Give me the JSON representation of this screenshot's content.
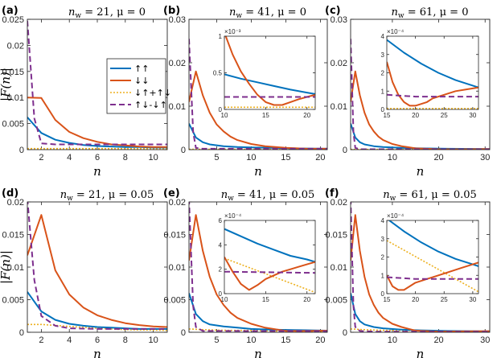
{
  "colors": {
    "uu": "#0072BD",
    "dd": "#D95319",
    "sum": "#EDB120",
    "diff": "#7E2F8E"
  },
  "ylabel": "|F(n)|",
  "legend": [
    "↑↑",
    "↓↓",
    "↓↑+↑↓",
    "↑↓-↓↑"
  ],
  "chart_data": [
    {
      "id": "a",
      "type": "line",
      "panel_label": "(a)",
      "title": "n_w = 21, μ = 0",
      "xlabel": "n",
      "xlim": [
        1,
        11
      ],
      "ylim": [
        0,
        0.025
      ],
      "xticks": [
        2,
        4,
        6,
        8,
        10
      ],
      "yticks": [
        0,
        0.005,
        0.01,
        0.015,
        0.02,
        0.025
      ],
      "ytick_labels": [
        "0",
        "0.005",
        "0.01",
        "0.015",
        "0.02",
        "0.025"
      ],
      "series": {
        "uu": {
          "x": [
            1,
            2,
            3,
            4,
            5,
            6,
            7,
            8,
            9,
            10,
            11
          ],
          "y": [
            0.0062,
            0.0032,
            0.0019,
            0.0013,
            0.0009,
            0.0007,
            0.0006,
            0.0005,
            0.0005,
            0.0004,
            0.0004
          ]
        },
        "dd": {
          "x": [
            1,
            2,
            3,
            4,
            5,
            6,
            7,
            8,
            9,
            10,
            11
          ],
          "y": [
            0.01,
            0.0099,
            0.0057,
            0.0034,
            0.0022,
            0.0015,
            0.001,
            0.0008,
            0.0006,
            0.0005,
            0.0005
          ]
        },
        "sum": {
          "x": [
            1,
            11
          ],
          "y": [
            0.0002,
            0.0002
          ]
        },
        "diff": {
          "x": [
            1,
            1.5,
            2,
            3,
            4,
            6,
            8,
            11
          ],
          "y": [
            0.0247,
            0.006,
            0.0012,
            0.001,
            0.001,
            0.001,
            0.001,
            0.001
          ]
        }
      }
    },
    {
      "id": "b",
      "type": "line",
      "panel_label": "(b)",
      "title": "n_w = 41, μ = 0",
      "xlabel": "n",
      "xlim": [
        1,
        21
      ],
      "ylim": [
        0,
        0.03
      ],
      "xticks": [
        5,
        10,
        15,
        20
      ],
      "yticks": [
        0,
        0.01,
        0.02,
        0.03
      ],
      "ytick_labels": [
        "0",
        "0.01",
        "0.02",
        "0.03"
      ],
      "series": {
        "uu": {
          "x": [
            1,
            2,
            3,
            4,
            6,
            8,
            10,
            13,
            16,
            21
          ],
          "y": [
            0.006,
            0.0028,
            0.0017,
            0.0012,
            0.0008,
            0.0006,
            0.0005,
            0.0004,
            0.0003,
            0.0002
          ]
        },
        "dd": {
          "x": [
            1,
            2,
            3,
            4,
            5,
            6,
            7,
            8,
            10,
            12,
            15,
            18,
            21
          ],
          "y": [
            0.011,
            0.018,
            0.0125,
            0.0085,
            0.0058,
            0.0042,
            0.003,
            0.0022,
            0.0013,
            0.0008,
            0.0004,
            0.0002,
            0.0002
          ]
        },
        "sum": {
          "x": [
            1,
            21
          ],
          "y": [
            0.0001,
            0.0001
          ]
        },
        "diff": {
          "x": [
            1,
            1.6,
            2,
            3,
            6,
            10,
            21
          ],
          "y": [
            0.0255,
            0.004,
            0.0004,
            0.0002,
            0.0002,
            0.0002,
            0.0002
          ]
        }
      },
      "inset": {
        "xlim": [
          10,
          21
        ],
        "ylim": [
          0,
          0.001
        ],
        "xticks": [
          10,
          15,
          20
        ],
        "yticks": [
          0,
          0.0005,
          0.001
        ],
        "ytick_labels": [
          "0",
          "0.5",
          "1"
        ],
        "exponent": "×10⁻³",
        "series": {
          "uu": {
            "x": [
              10,
              12,
              14,
              16,
              18,
              20,
              21
            ],
            "y": [
              0.00048,
              0.00042,
              0.00037,
              0.00032,
              0.00027,
              0.00023,
              0.00021
            ]
          },
          "dd": {
            "x": [
              10,
              11,
              12,
              13,
              14,
              15,
              16,
              17,
              18,
              19,
              20,
              21
            ],
            "y": [
              0.00105,
              0.00075,
              0.00052,
              0.00035,
              0.0002,
              0.0001,
              6e-05,
              6e-05,
              0.0001,
              0.00014,
              0.00017,
              0.0002
            ]
          },
          "sum": {
            "x": [
              10,
              21
            ],
            "y": [
              3e-05,
              3e-05
            ]
          },
          "diff": {
            "x": [
              10,
              21
            ],
            "y": [
              0.00017,
              0.00017
            ]
          }
        }
      }
    },
    {
      "id": "c",
      "type": "line",
      "panel_label": "(c)",
      "title": "n_w = 61, μ = 0",
      "xlabel": "n",
      "xlim": [
        1,
        31
      ],
      "ylim": [
        0,
        0.03
      ],
      "xticks": [
        10,
        20,
        30
      ],
      "yticks": [
        0,
        0.01,
        0.02,
        0.03
      ],
      "ytick_labels": [
        "0",
        "0.01",
        "0.02",
        "0.03"
      ],
      "series": {
        "uu": {
          "x": [
            1,
            2,
            3,
            4,
            6,
            8,
            12,
            16,
            22,
            31
          ],
          "y": [
            0.006,
            0.0028,
            0.0017,
            0.0012,
            0.0008,
            0.0006,
            0.0004,
            0.0003,
            0.0002,
            0.00013
          ]
        },
        "dd": {
          "x": [
            1,
            2,
            3,
            4,
            5,
            6,
            7,
            8,
            10,
            12,
            15,
            20,
            25,
            31
          ],
          "y": [
            0.011,
            0.018,
            0.0125,
            0.0085,
            0.0058,
            0.0042,
            0.003,
            0.0022,
            0.0013,
            0.0008,
            0.0003,
            0.0001,
            0.0001,
            0.00013
          ]
        },
        "sum": {
          "x": [
            1,
            31
          ],
          "y": [
            5e-05,
            5e-05
          ]
        },
        "diff": {
          "x": [
            1,
            1.6,
            2,
            3,
            6,
            31
          ],
          "y": [
            0.0255,
            0.004,
            0.0004,
            0.0001,
            0.0001,
            8e-05
          ]
        }
      },
      "inset": {
        "xlim": [
          15,
          31
        ],
        "ylim": [
          0,
          0.0004
        ],
        "xticks": [
          15,
          20,
          25,
          30
        ],
        "yticks": [
          0,
          0.0001,
          0.0002,
          0.0003,
          0.0004
        ],
        "ytick_labels": [
          "0",
          "1",
          "2",
          "3",
          "4"
        ],
        "exponent": "×10⁻⁴",
        "series": {
          "uu": {
            "x": [
              15,
              18,
              21,
              24,
              27,
              30,
              31
            ],
            "y": [
              0.00038,
              0.00031,
              0.00025,
              0.0002,
              0.00016,
              0.00013,
              0.00012
            ]
          },
          "dd": {
            "x": [
              15,
              16,
              17,
              18,
              19,
              20,
              21,
              22,
              23,
              25,
              27,
              29,
              31
            ],
            "y": [
              0.00026,
              0.00015,
              8e-05,
              4e-05,
              2e-05,
              2e-05,
              3e-05,
              4e-05,
              6e-05,
              8e-05,
              0.0001,
              0.00011,
              0.00012
            ]
          },
          "sum": {
            "x": [
              15,
              31
            ],
            "y": [
              5e-06,
              5e-06
            ]
          },
          "diff": {
            "x": [
              15,
              20,
              25,
              31
            ],
            "y": [
              8e-05,
              7e-05,
              7e-05,
              7e-05
            ]
          }
        }
      }
    },
    {
      "id": "d",
      "type": "line",
      "panel_label": "(d)",
      "title": "n_w = 21, μ = 0.05",
      "xlabel": "n",
      "xlim": [
        1,
        11
      ],
      "ylim": [
        0,
        0.02
      ],
      "xticks": [
        2,
        4,
        6,
        8,
        10
      ],
      "yticks": [
        0,
        0.005,
        0.01,
        0.015,
        0.02
      ],
      "ytick_labels": [
        "0",
        "0.005",
        "0.01",
        "0.015",
        "0.02"
      ],
      "series": {
        "uu": {
          "x": [
            1,
            2,
            3,
            4,
            5,
            6,
            7,
            8,
            9,
            10,
            11
          ],
          "y": [
            0.0062,
            0.0032,
            0.0019,
            0.0013,
            0.001,
            0.0008,
            0.0007,
            0.0006,
            0.0005,
            0.0005,
            0.0005
          ]
        },
        "dd": {
          "x": [
            1,
            2,
            3,
            4,
            5,
            6,
            7,
            8,
            9,
            10,
            11
          ],
          "y": [
            0.0118,
            0.018,
            0.0095,
            0.0058,
            0.0038,
            0.0026,
            0.0019,
            0.0014,
            0.0011,
            0.0009,
            0.0008
          ]
        },
        "sum": {
          "x": [
            1,
            2,
            4,
            6,
            8,
            11
          ],
          "y": [
            0.0012,
            0.0012,
            0.0009,
            0.0006,
            0.0004,
            0.0003
          ]
        },
        "diff": {
          "x": [
            1,
            1.5,
            2,
            3,
            4,
            6,
            8,
            11
          ],
          "y": [
            0.0205,
            0.008,
            0.0025,
            0.001,
            0.0006,
            0.0005,
            0.0005,
            0.0005
          ]
        }
      }
    },
    {
      "id": "e",
      "type": "line",
      "panel_label": "(e)",
      "title": "n_w = 41, μ = 0.05",
      "xlabel": "n",
      "xlim": [
        1,
        21
      ],
      "ylim": [
        0,
        0.02
      ],
      "xticks": [
        5,
        10,
        15,
        20
      ],
      "yticks": [
        0,
        0.005,
        0.01,
        0.015,
        0.02
      ],
      "ytick_labels": [
        "0",
        "0.005",
        "0.01",
        "0.015",
        "0.02"
      ],
      "series": {
        "uu": {
          "x": [
            1,
            2,
            3,
            4,
            6,
            8,
            10,
            13,
            16,
            21
          ],
          "y": [
            0.006,
            0.0028,
            0.0017,
            0.0012,
            0.0009,
            0.0007,
            0.0005,
            0.0004,
            0.00035,
            0.00025
          ]
        },
        "dd": {
          "x": [
            1,
            2,
            3,
            4,
            5,
            6,
            7,
            8,
            10,
            12,
            15,
            18,
            21
          ],
          "y": [
            0.011,
            0.018,
            0.0125,
            0.0085,
            0.0058,
            0.0042,
            0.003,
            0.0022,
            0.0013,
            0.0007,
            0.0002,
            0.0002,
            0.00025
          ]
        },
        "sum": {
          "x": [
            1,
            3,
            6,
            10,
            15,
            21
          ],
          "y": [
            0.0005,
            0.0004,
            0.0003,
            0.00029,
            0.00015,
            1e-05
          ]
        },
        "diff": {
          "x": [
            1,
            1.6,
            2,
            3,
            6,
            21
          ],
          "y": [
            0.0205,
            0.004,
            0.0008,
            0.0002,
            0.0002,
            0.00017
          ]
        }
      },
      "inset": {
        "xlim": [
          10,
          21
        ],
        "ylim": [
          0,
          0.0006
        ],
        "xticks": [
          10,
          15,
          20
        ],
        "yticks": [
          0,
          0.0002,
          0.0004,
          0.0006
        ],
        "ytick_labels": [
          "0",
          "2",
          "4",
          "6"
        ],
        "exponent": "×10⁻⁴",
        "series": {
          "uu": {
            "x": [
              10,
              12,
              14,
              16,
              18,
              20,
              21
            ],
            "y": [
              0.00053,
              0.00047,
              0.00041,
              0.00036,
              0.00031,
              0.00028,
              0.00026
            ]
          },
          "dd": {
            "x": [
              10,
              11,
              12,
              13,
              14,
              15,
              16,
              17,
              18,
              19,
              20,
              21
            ],
            "y": [
              0.0003,
              0.00018,
              8e-05,
              3e-05,
              7e-05,
              0.00012,
              0.00015,
              0.00018,
              0.0002,
              0.00022,
              0.00024,
              0.00026
            ]
          },
          "sum": {
            "x": [
              10,
              21
            ],
            "y": [
              0.00029,
              1e-05
            ]
          },
          "diff": {
            "x": [
              10,
              21
            ],
            "y": [
              0.00018,
              0.00017
            ]
          }
        }
      }
    },
    {
      "id": "f",
      "type": "line",
      "panel_label": "(f)",
      "title": "n_w = 61, μ = 0.05",
      "xlabel": "n",
      "xlim": [
        1,
        31
      ],
      "ylim": [
        0,
        0.02
      ],
      "xticks": [
        10,
        20,
        30
      ],
      "yticks": [
        0,
        0.005,
        0.01,
        0.015,
        0.02
      ],
      "ytick_labels": [
        "0",
        "0.005",
        "0.01",
        "0.015",
        "0.02"
      ],
      "series": {
        "uu": {
          "x": [
            1,
            2,
            3,
            4,
            6,
            8,
            12,
            16,
            22,
            31
          ],
          "y": [
            0.006,
            0.0028,
            0.0017,
            0.0012,
            0.0008,
            0.0006,
            0.0004,
            0.0003,
            0.0002,
            0.00013
          ]
        },
        "dd": {
          "x": [
            1,
            2,
            3,
            4,
            5,
            6,
            7,
            8,
            10,
            12,
            15,
            20,
            25,
            31
          ],
          "y": [
            0.011,
            0.018,
            0.0125,
            0.0085,
            0.0058,
            0.0042,
            0.003,
            0.0022,
            0.0013,
            0.0008,
            0.00025,
            0.0001,
            0.00013,
            0.00017
          ]
        },
        "sum": {
          "x": [
            1,
            4,
            8,
            15,
            22,
            31
          ],
          "y": [
            0.0005,
            0.0004,
            0.0003,
            0.00027,
            0.00013,
            1e-05
          ]
        },
        "diff": {
          "x": [
            1,
            1.6,
            2,
            3,
            6,
            31
          ],
          "y": [
            0.0205,
            0.004,
            0.0008,
            0.0002,
            0.0001,
            8e-05
          ]
        }
      },
      "inset": {
        "xlim": [
          15,
          31
        ],
        "ylim": [
          0,
          0.0004
        ],
        "xticks": [
          15,
          20,
          25,
          30
        ],
        "yticks": [
          0,
          0.0001,
          0.0002,
          0.0003,
          0.0004
        ],
        "ytick_labels": [
          "0",
          "1",
          "2",
          "3",
          "4"
        ],
        "exponent": "×10⁻⁴",
        "series": {
          "uu": {
            "x": [
              15,
              18,
              21,
              24,
              27,
              30,
              31
            ],
            "y": [
              0.00041,
              0.00034,
              0.00028,
              0.00023,
              0.00019,
              0.00016,
              0.00015
            ]
          },
          "dd": {
            "x": [
              15,
              16,
              17,
              18,
              19,
              20,
              22,
              24,
              26,
              28,
              30,
              31
            ],
            "y": [
              0.0001,
              4e-05,
              2e-05,
              2e-05,
              4e-05,
              6e-05,
              8e-05,
              0.0001,
              0.00012,
              0.00014,
              0.00016,
              0.00017
            ]
          },
          "sum": {
            "x": [
              15,
              31
            ],
            "y": [
              0.00029,
              1e-05
            ]
          },
          "diff": {
            "x": [
              15,
              20,
              25,
              31
            ],
            "y": [
              9e-05,
              8e-05,
              8e-05,
              8e-05
            ]
          }
        }
      }
    }
  ]
}
